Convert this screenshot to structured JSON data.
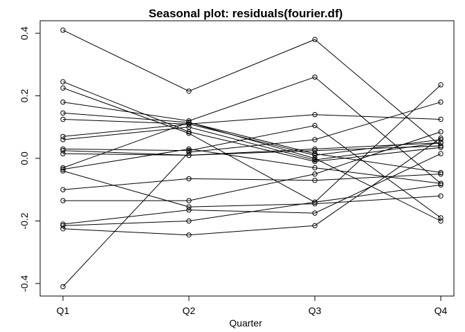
{
  "chart_data": {
    "type": "line",
    "title": "Seasonal plot: residuals(fourier.df)",
    "xlabel": "Quarter",
    "ylabel": "",
    "categories": [
      "Q1",
      "Q2",
      "Q3",
      "Q4"
    ],
    "ylim": [
      -0.44,
      0.44
    ],
    "yticks": [
      -0.4,
      -0.2,
      0.0,
      0.2,
      0.4
    ],
    "ytick_labels": [
      "-0.4",
      "-0.2",
      "0.0",
      "0.2",
      "0.4"
    ],
    "grid": false,
    "legend": "none",
    "line_color": "#000000",
    "marker": "open-circle",
    "series": [
      {
        "values": [
          0.41,
          0.215,
          0.38,
          0.04
        ]
      },
      {
        "values": [
          0.245,
          0.085,
          -0.01,
          0.035
        ]
      },
      {
        "values": [
          0.225,
          0.08,
          -0.14,
          -0.085
        ]
      },
      {
        "values": [
          0.18,
          0.12,
          0.26,
          -0.08
        ]
      },
      {
        "values": [
          0.145,
          0.115,
          0.0,
          -0.2
        ]
      },
      {
        "values": [
          0.125,
          0.11,
          0.14,
          0.125
        ]
      },
      {
        "values": [
          0.07,
          0.11,
          0.01,
          0.06
        ]
      },
      {
        "values": [
          0.06,
          0.1,
          -0.005,
          0.05
        ]
      },
      {
        "values": [
          0.03,
          0.025,
          0.105,
          -0.19
        ]
      },
      {
        "values": [
          0.025,
          0.01,
          0.025,
          0.04
        ]
      },
      {
        "values": [
          0.015,
          0.01,
          0.03,
          0.05
        ]
      },
      {
        "values": [
          -0.03,
          0.115,
          0.015,
          -0.045
        ]
      },
      {
        "values": [
          -0.035,
          0.03,
          -0.03,
          -0.08
        ]
      },
      {
        "values": [
          -0.04,
          -0.155,
          -0.145,
          -0.12
        ]
      },
      {
        "values": [
          -0.1,
          -0.065,
          -0.07,
          -0.05
        ]
      },
      {
        "values": [
          -0.135,
          -0.135,
          -0.05,
          0.085
        ]
      },
      {
        "values": [
          -0.21,
          -0.165,
          -0.175,
          0.015
        ]
      },
      {
        "values": [
          -0.215,
          -0.2,
          -0.14,
          0.235
        ]
      },
      {
        "values": [
          -0.225,
          -0.245,
          -0.215,
          0.065
        ]
      },
      {
        "values": [
          -0.41,
          0.02,
          0.06,
          0.18
        ]
      }
    ]
  }
}
